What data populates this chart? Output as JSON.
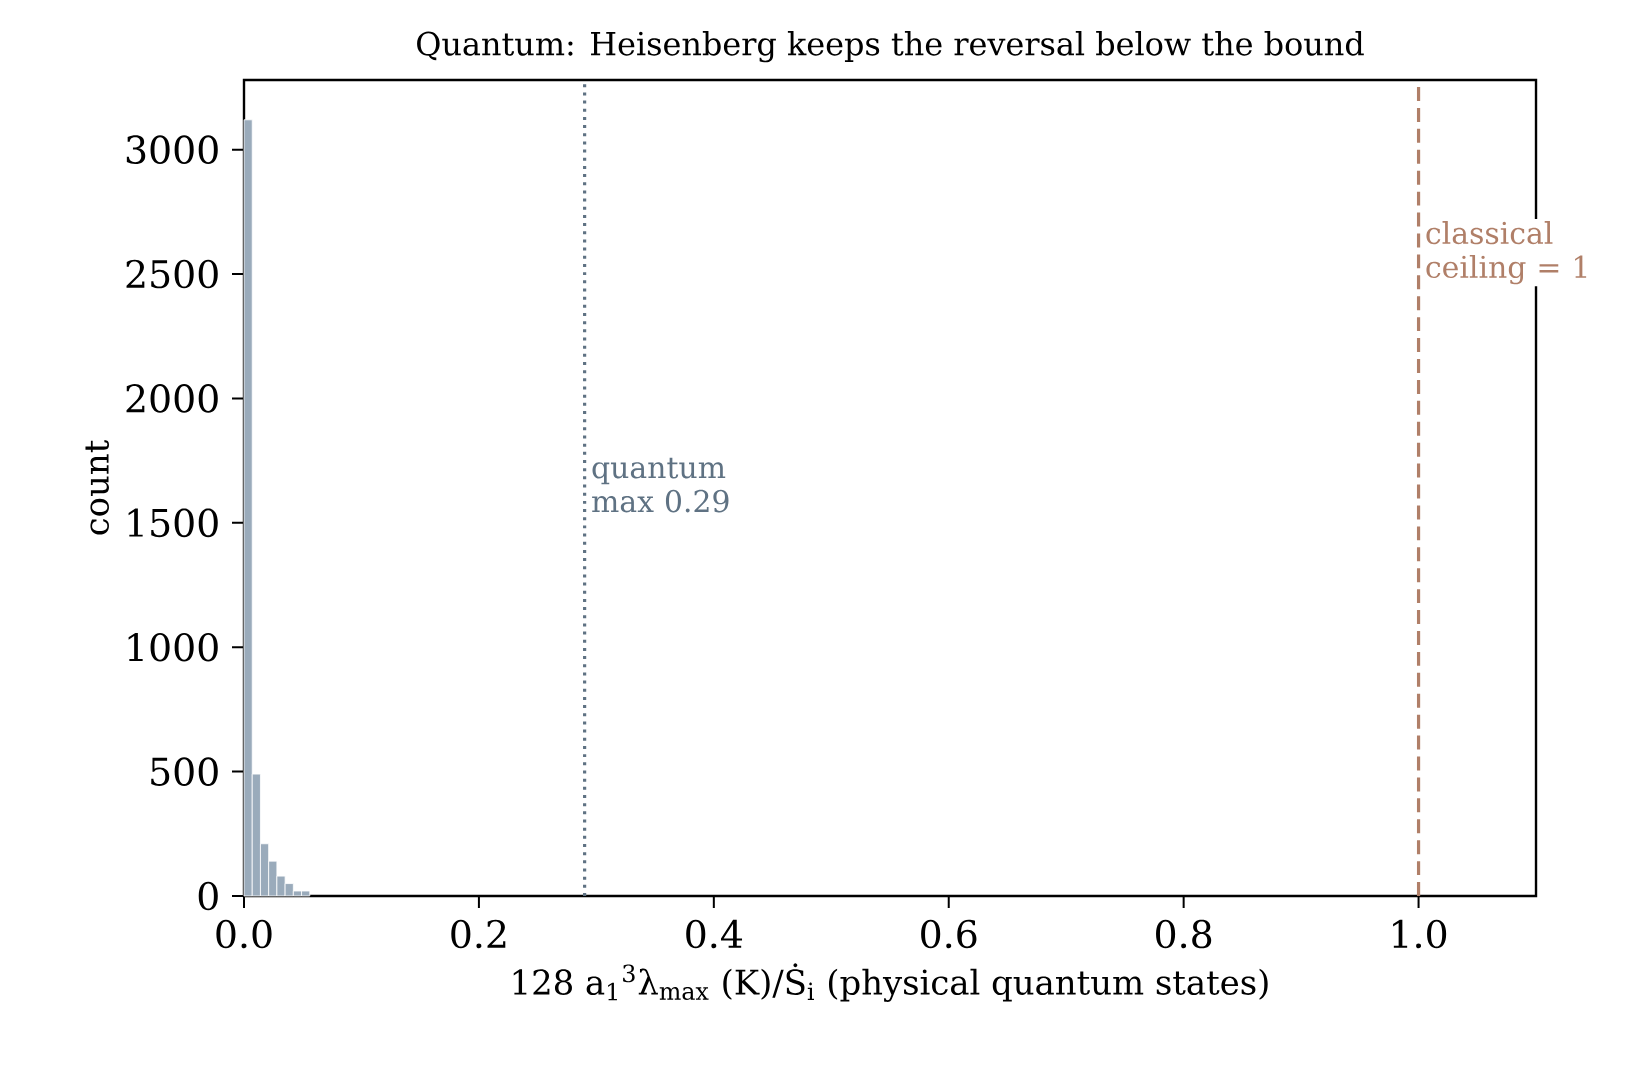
{
  "chart_data": {
    "type": "histogram",
    "title": "Quantum: Heisenberg keeps the reversal below the bound",
    "xlabel": "128 a$_{1}$$^{3}$λ$_{max}$ (K)/Ṡ$_{i}$ (physical quantum states)",
    "ylabel": "count",
    "bins": [
      0,
      0.007,
      0.014,
      0.021,
      0.028,
      0.035,
      0.042,
      0.049,
      0.056
    ],
    "values": [
      3120,
      490,
      210,
      140,
      80,
      50,
      20,
      20
    ],
    "color": "#9aabbb",
    "xlim": [
      0,
      1.1
    ],
    "ylim": [
      0,
      3280
    ],
    "xticks": [
      {
        "value": 0,
        "label": "0.0"
      },
      0.2,
      0.4,
      0.6,
      0.8,
      {
        "value": 1,
        "label": "1.0"
      }
    ],
    "yticks": [
      0,
      500,
      1000,
      1500,
      2000,
      2500,
      3000
    ],
    "ref_lines": [
      {
        "axis": "x",
        "value": 0.29,
        "label": "quantum max 0.29",
        "color": "#5f7283",
        "line_style": "dotted"
      },
      {
        "axis": "x",
        "value": 1,
        "label": "classical ceiling = 1",
        "color": "#b07f68",
        "line_style": "dashed"
      }
    ],
    "grid": false
  }
}
